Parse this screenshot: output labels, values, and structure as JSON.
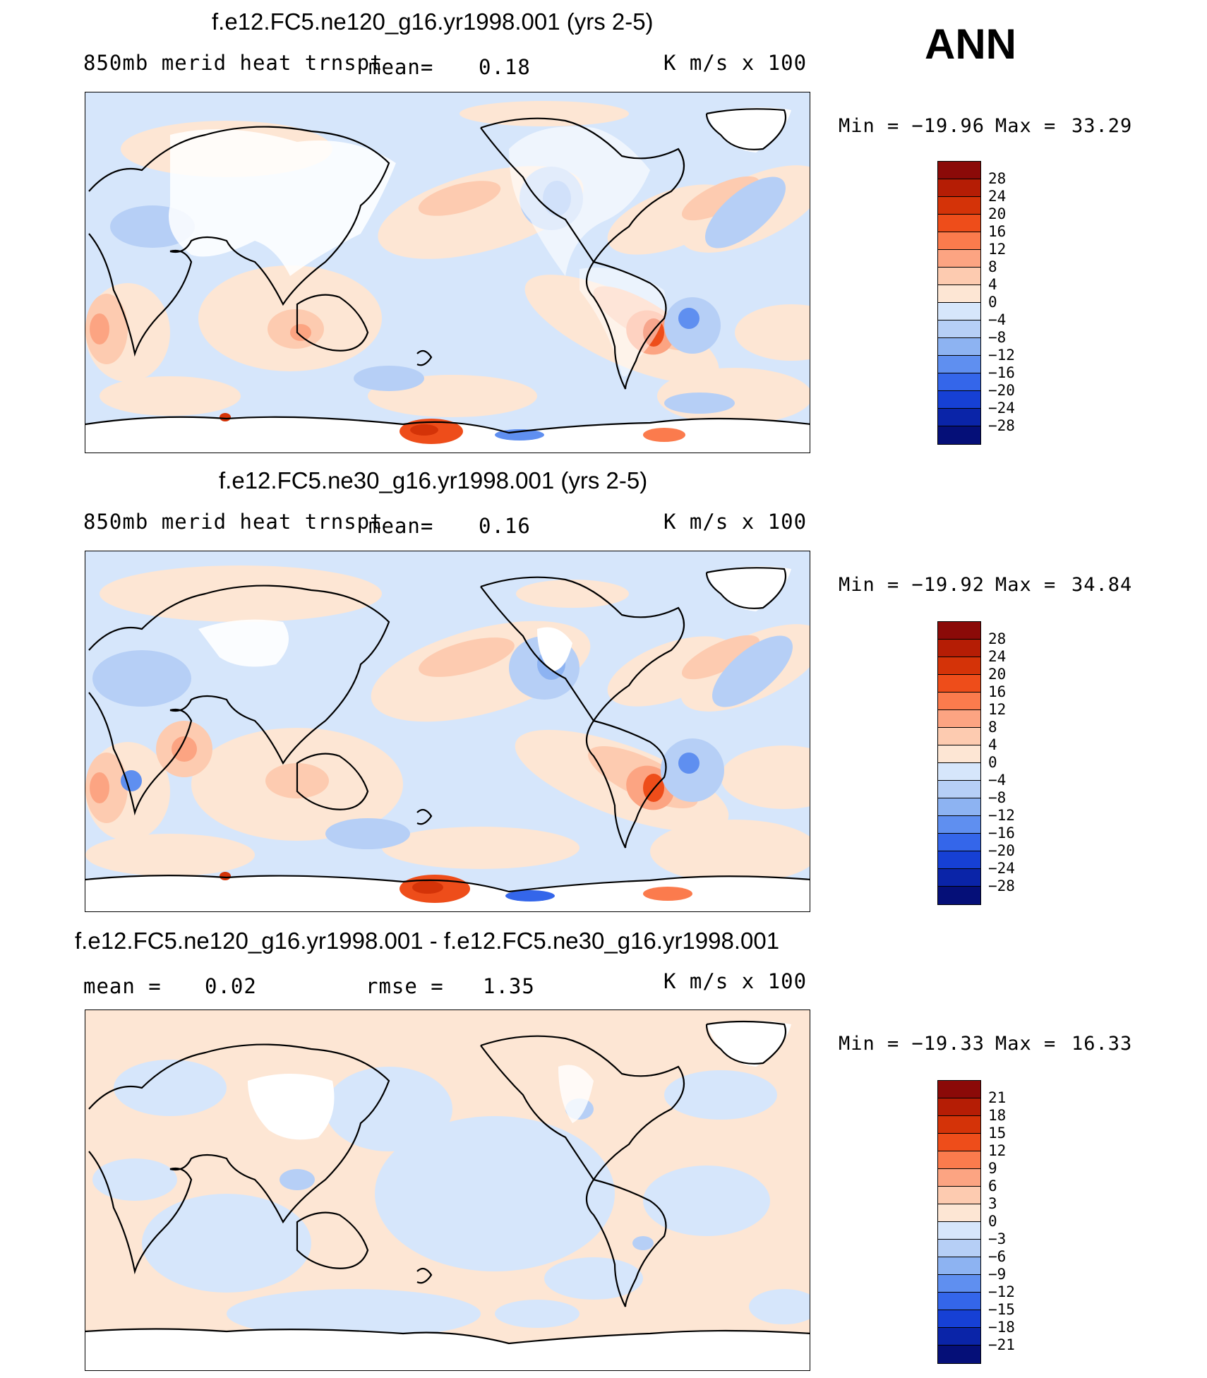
{
  "season": "ANN",
  "units": "K m/s x 100",
  "colors": {
    "ocean_neg": "#d6e6fb",
    "ocean_pos": "#fde6d4",
    "land_fill": "#ffffff",
    "coast": "#000000"
  },
  "panels": [
    {
      "title": "f.e12.FC5.ne120_g16.yr1998.001 (yrs 2-5)",
      "field": "850mb merid heat trnspt",
      "mean_label": "mean=",
      "mean_value": "0.18",
      "units": "K m/s x 100",
      "min_label": "Min = −19.96",
      "max_label": "Max =",
      "max_value": "33.29",
      "colorbar_labels": [
        "28",
        "24",
        "20",
        "16",
        "12",
        "8",
        "4",
        "0",
        "−4",
        "−8",
        "−12",
        "−16",
        "−20",
        "−24",
        "−28"
      ],
      "colorbar_colors": [
        "#8b0a08",
        "#b51d05",
        "#d43308",
        "#ee4d1a",
        "#fb7b4d",
        "#fca482",
        "#fdcbb0",
        "#fde6d4",
        "#d6e6fb",
        "#b6cff6",
        "#8db3f2",
        "#5f8ff0",
        "#3466ea",
        "#1640d5",
        "#0a24a8",
        "#050f78"
      ]
    },
    {
      "title": "f.e12.FC5.ne30_g16.yr1998.001 (yrs 2-5)",
      "field": "850mb merid heat trnspt",
      "mean_label": "mean=",
      "mean_value": "0.16",
      "units": "K m/s x 100",
      "min_label": "Min = −19.92",
      "max_label": "Max =",
      "max_value": "34.84",
      "colorbar_labels": [
        "28",
        "24",
        "20",
        "16",
        "12",
        "8",
        "4",
        "0",
        "−4",
        "−8",
        "−12",
        "−16",
        "−20",
        "−24",
        "−28"
      ],
      "colorbar_colors": [
        "#8b0a08",
        "#b51d05",
        "#d43308",
        "#ee4d1a",
        "#fb7b4d",
        "#fca482",
        "#fdcbb0",
        "#fde6d4",
        "#d6e6fb",
        "#b6cff6",
        "#8db3f2",
        "#5f8ff0",
        "#3466ea",
        "#1640d5",
        "#0a24a8",
        "#050f78"
      ]
    },
    {
      "title": "f.e12.FC5.ne120_g16.yr1998.001 - f.e12.FC5.ne30_g16.yr1998.001",
      "mean_label": "mean =",
      "mean_value": "0.02",
      "rmse_label": "rmse =",
      "rmse_value": "1.35",
      "units": "K m/s x 100",
      "min_label": "Min = −19.33",
      "max_label": "Max =",
      "max_value": "16.33",
      "colorbar_labels": [
        "21",
        "18",
        "15",
        "12",
        "9",
        "6",
        "3",
        "0",
        "−3",
        "−6",
        "−9",
        "−12",
        "−15",
        "−18",
        "−21"
      ],
      "colorbar_colors": [
        "#8b0a08",
        "#b51d05",
        "#d43308",
        "#ee4d1a",
        "#fb7b4d",
        "#fca482",
        "#fdcbb0",
        "#fde6d4",
        "#d6e6fb",
        "#b6cff6",
        "#8db3f2",
        "#5f8ff0",
        "#3466ea",
        "#1640d5",
        "#0a24a8",
        "#050f78"
      ]
    }
  ]
}
